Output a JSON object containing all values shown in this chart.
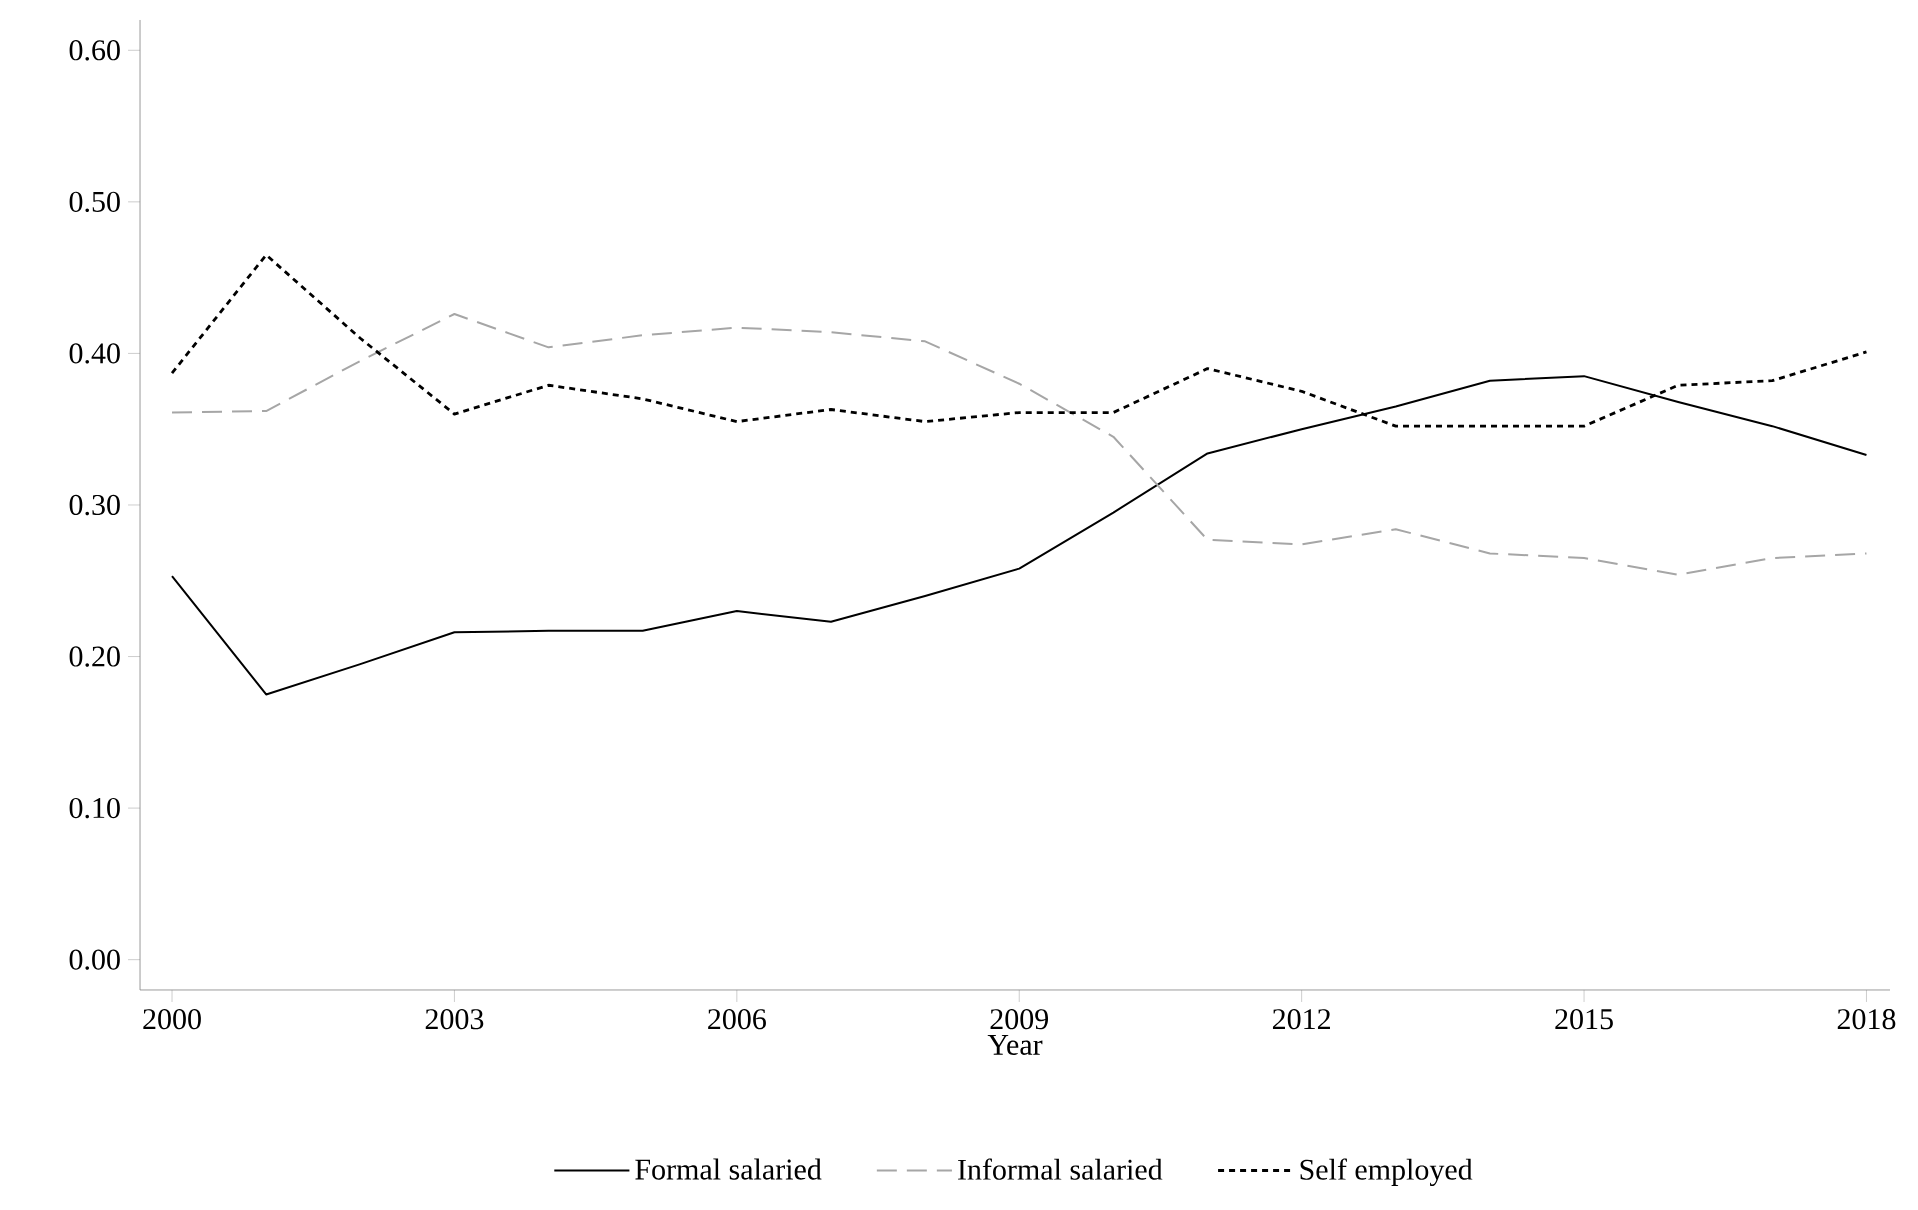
{
  "chart_data": {
    "type": "line",
    "xlabel": "Year",
    "x": [
      2000,
      2001,
      2002,
      2003,
      2004,
      2005,
      2006,
      2007,
      2008,
      2009,
      2010,
      2011,
      2012,
      2013,
      2014,
      2015,
      2016,
      2017,
      2018
    ],
    "series": [
      {
        "name": "Formal salaried",
        "color": "#000000",
        "line_style": "solid",
        "values": [
          0.253,
          0.175,
          0.195,
          0.216,
          0.217,
          0.217,
          0.23,
          0.223,
          0.24,
          0.258,
          0.295,
          0.334,
          0.35,
          0.365,
          0.382,
          0.385,
          0.368,
          0.352,
          0.333
        ]
      },
      {
        "name": "Informal salaried",
        "color": "#a6a6a6",
        "line_style": "dashed",
        "values": [
          0.361,
          0.362,
          0.395,
          0.426,
          0.404,
          0.412,
          0.417,
          0.414,
          0.408,
          0.38,
          0.345,
          0.277,
          0.274,
          0.284,
          0.268,
          0.265,
          0.254,
          0.265,
          0.268
        ]
      },
      {
        "name": "Self employed",
        "color": "#000000",
        "line_style": "dotted",
        "values": [
          0.387,
          0.465,
          0.41,
          0.36,
          0.379,
          0.37,
          0.355,
          0.363,
          0.355,
          0.361,
          0.361,
          0.39,
          0.375,
          0.352,
          0.352,
          0.352,
          0.379,
          0.382,
          0.401
        ]
      }
    ],
    "xlim": [
      1999.66,
      2018.25
    ],
    "ylim": [
      -0.02,
      0.62
    ],
    "xticks": [
      2000,
      2003,
      2006,
      2009,
      2012,
      2015,
      2018
    ],
    "yticks": [
      {
        "value": 0,
        "label": "0.00"
      },
      {
        "value": 0.1,
        "label": "0.10"
      },
      {
        "value": 0.2,
        "label": "0.20"
      },
      {
        "value": 0.3,
        "label": "0.30"
      },
      {
        "value": 0.4,
        "label": "0.40"
      },
      {
        "value": 0.5,
        "label": "0.50"
      },
      {
        "value": 0.6,
        "label": "0.60"
      }
    ],
    "grid": false,
    "legend": "bottom",
    "marker": "none"
  }
}
